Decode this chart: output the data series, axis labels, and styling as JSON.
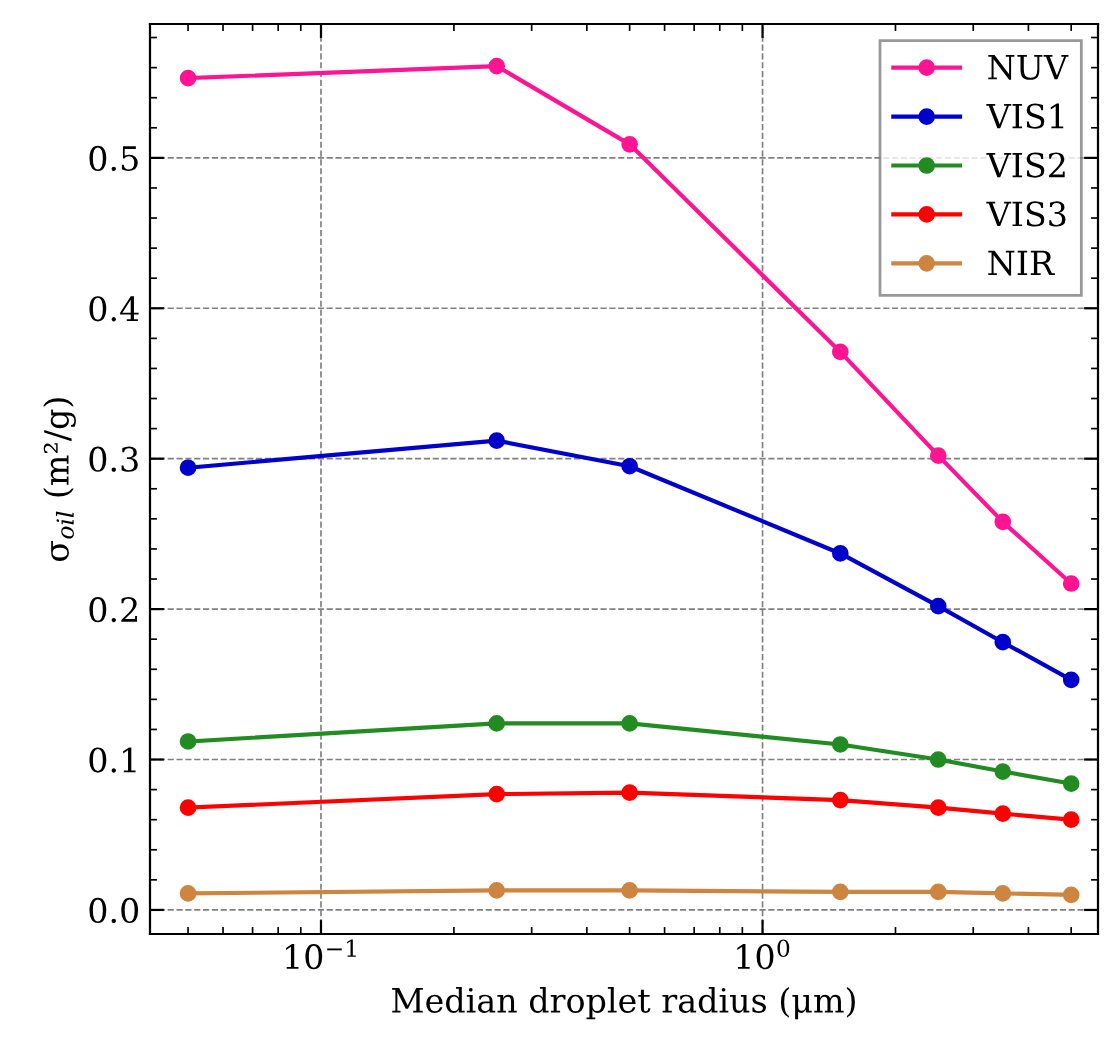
{
  "chart_data": {
    "type": "line",
    "xlabel": "Median droplet radius (μm)",
    "ylabel": "σ$_{oil}$ (m²/g)",
    "x": [
      0.05,
      0.25,
      0.5,
      1.5,
      2.5,
      3.5,
      5
    ],
    "series": [
      {
        "name": "NUV",
        "color": "#ff1493",
        "values": [
          0.553,
          0.561,
          0.509,
          0.371,
          0.302,
          0.258,
          0.217
        ]
      },
      {
        "name": "VIS1",
        "color": "#0000cd",
        "values": [
          0.294,
          0.312,
          0.295,
          0.237,
          0.202,
          0.178,
          0.153
        ]
      },
      {
        "name": "VIS2",
        "color": "#228b22",
        "values": [
          0.112,
          0.124,
          0.124,
          0.11,
          0.1,
          0.092,
          0.084
        ]
      },
      {
        "name": "VIS3",
        "color": "#ff0000",
        "values": [
          0.068,
          0.077,
          0.078,
          0.073,
          0.068,
          0.064,
          0.06
        ]
      },
      {
        "name": "NIR",
        "color": "#cd853f",
        "values": [
          0.011,
          0.013,
          0.013,
          0.012,
          0.012,
          0.011,
          0.01
        ]
      }
    ],
    "log": "x",
    "xlim": [
      0.041,
      5.75
    ],
    "ylim": [
      -0.016,
      0.589
    ],
    "xticks": [
      {
        "value": 0.1,
        "label": "10$^{−1}$"
      },
      {
        "value": 1,
        "label": "10$^{0}$"
      }
    ],
    "yticks": [
      {
        "value": 0,
        "label": "0.0"
      },
      0.1,
      0.2,
      0.3,
      0.4,
      0.5
    ],
    "grid": true,
    "legend": "top right",
    "marker": "circle",
    "line_style": "solid"
  }
}
